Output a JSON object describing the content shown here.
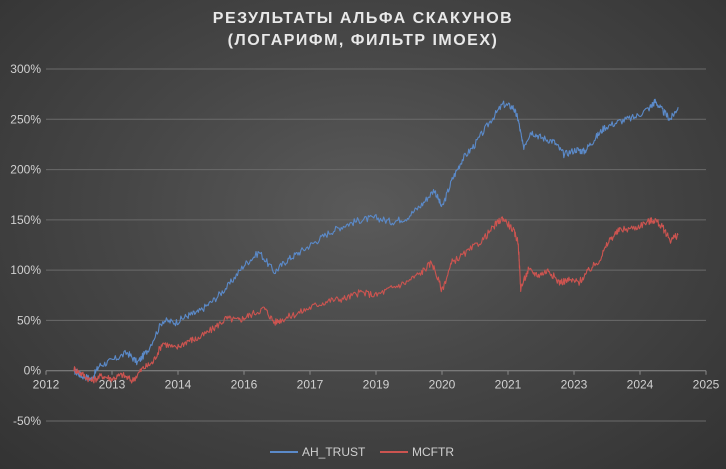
{
  "chart_data": {
    "type": "line",
    "title": "РЕЗУЛЬТАТЫ АЛЬФА СКАКУНОВ",
    "subtitle": "(ЛОГАРИФМ, ФИЛЬТР IMOEX)",
    "xlabel": "",
    "ylabel": "",
    "xlim": [
      2012,
      2025
    ],
    "ylim": [
      -50,
      300
    ],
    "x_tick_labels": [
      "2012",
      "2013",
      "2014",
      "2016",
      "2017",
      "2019",
      "2020",
      "2021",
      "2023",
      "2024",
      "2025"
    ],
    "y_tick_labels": [
      "-50%",
      "0%",
      "50%",
      "100%",
      "150%",
      "200%",
      "250%",
      "300%"
    ],
    "grid": true,
    "legend_position": "bottom",
    "series": [
      {
        "name": "AH_TRUST",
        "color": "#5b8ac9",
        "points": [
          [
            2012.55,
            0
          ],
          [
            2012.7,
            -5
          ],
          [
            2012.9,
            -8
          ],
          [
            2013.05,
            5
          ],
          [
            2013.3,
            10
          ],
          [
            2013.6,
            18
          ],
          [
            2013.8,
            8
          ],
          [
            2014.0,
            20
          ],
          [
            2014.3,
            50
          ],
          [
            2014.55,
            48
          ],
          [
            2014.8,
            55
          ],
          [
            2015.0,
            58
          ],
          [
            2015.3,
            70
          ],
          [
            2015.6,
            85
          ],
          [
            2015.9,
            105
          ],
          [
            2016.2,
            118
          ],
          [
            2016.5,
            98
          ],
          [
            2016.75,
            110
          ],
          [
            2017.0,
            118
          ],
          [
            2017.3,
            128
          ],
          [
            2017.6,
            138
          ],
          [
            2017.9,
            145
          ],
          [
            2018.2,
            150
          ],
          [
            2018.5,
            152
          ],
          [
            2018.8,
            148
          ],
          [
            2019.1,
            152
          ],
          [
            2019.4,
            165
          ],
          [
            2019.65,
            180
          ],
          [
            2019.8,
            162
          ],
          [
            2020.0,
            190
          ],
          [
            2020.2,
            210
          ],
          [
            2020.45,
            225
          ],
          [
            2020.75,
            248
          ],
          [
            2021.0,
            265
          ],
          [
            2021.2,
            262
          ],
          [
            2021.3,
            250
          ],
          [
            2021.4,
            222
          ],
          [
            2021.55,
            238
          ],
          [
            2021.75,
            232
          ],
          [
            2022.0,
            228
          ],
          [
            2022.2,
            215
          ],
          [
            2022.45,
            220
          ],
          [
            2022.6,
            218
          ],
          [
            2022.8,
            230
          ],
          [
            2023.0,
            242
          ],
          [
            2023.3,
            248
          ],
          [
            2023.6,
            252
          ],
          [
            2023.9,
            262
          ],
          [
            2024.0,
            268
          ],
          [
            2024.15,
            258
          ],
          [
            2024.3,
            250
          ],
          [
            2024.45,
            262
          ]
        ]
      },
      {
        "name": "MCFTR",
        "color": "#cc5450",
        "points": [
          [
            2012.55,
            2
          ],
          [
            2012.7,
            -3
          ],
          [
            2012.9,
            -10
          ],
          [
            2013.1,
            -5
          ],
          [
            2013.3,
            -8
          ],
          [
            2013.5,
            -4
          ],
          [
            2013.7,
            -10
          ],
          [
            2013.9,
            2
          ],
          [
            2014.1,
            8
          ],
          [
            2014.3,
            28
          ],
          [
            2014.55,
            22
          ],
          [
            2014.8,
            30
          ],
          [
            2015.0,
            32
          ],
          [
            2015.3,
            42
          ],
          [
            2015.55,
            52
          ],
          [
            2015.8,
            50
          ],
          [
            2016.0,
            55
          ],
          [
            2016.3,
            62
          ],
          [
            2016.5,
            48
          ],
          [
            2016.7,
            52
          ],
          [
            2017.0,
            58
          ],
          [
            2017.3,
            65
          ],
          [
            2017.6,
            70
          ],
          [
            2017.9,
            72
          ],
          [
            2018.2,
            78
          ],
          [
            2018.5,
            75
          ],
          [
            2018.8,
            82
          ],
          [
            2019.1,
            88
          ],
          [
            2019.4,
            98
          ],
          [
            2019.6,
            108
          ],
          [
            2019.8,
            80
          ],
          [
            2020.0,
            108
          ],
          [
            2020.3,
            118
          ],
          [
            2020.6,
            130
          ],
          [
            2020.85,
            145
          ],
          [
            2021.0,
            152
          ],
          [
            2021.2,
            140
          ],
          [
            2021.3,
            128
          ],
          [
            2021.35,
            82
          ],
          [
            2021.5,
            100
          ],
          [
            2021.7,
            95
          ],
          [
            2021.9,
            100
          ],
          [
            2022.1,
            88
          ],
          [
            2022.3,
            90
          ],
          [
            2022.5,
            88
          ],
          [
            2022.7,
            100
          ],
          [
            2022.9,
            110
          ],
          [
            2023.1,
            130
          ],
          [
            2023.3,
            140
          ],
          [
            2023.6,
            142
          ],
          [
            2023.85,
            148
          ],
          [
            2024.0,
            150
          ],
          [
            2024.15,
            142
          ],
          [
            2024.3,
            130
          ],
          [
            2024.45,
            135
          ]
        ]
      }
    ]
  }
}
